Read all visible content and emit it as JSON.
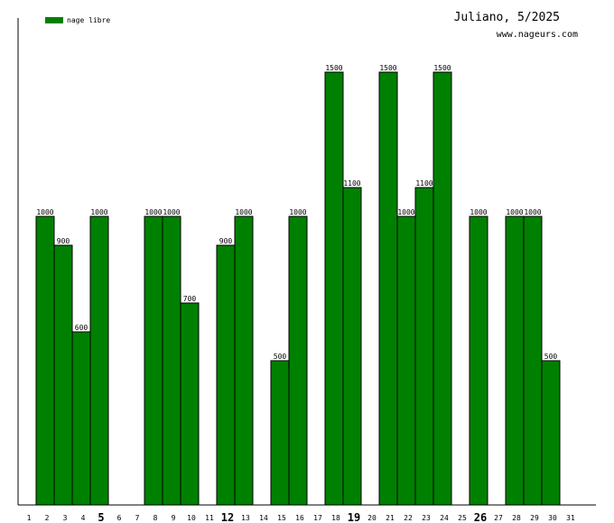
{
  "chart_data": {
    "type": "bar",
    "title": "Juliano, 5/2025",
    "subtitle": "www.nageurs.com",
    "xlabel": "",
    "ylabel": "",
    "ylim": [
      0,
      1500
    ],
    "grid": false,
    "legend": "top-left",
    "categories": [
      "1",
      "2",
      "3",
      "4",
      "5",
      "6",
      "7",
      "8",
      "9",
      "10",
      "11",
      "12",
      "13",
      "14",
      "15",
      "16",
      "17",
      "18",
      "19",
      "20",
      "21",
      "22",
      "23",
      "24",
      "25",
      "26",
      "27",
      "28",
      "29",
      "30",
      "31"
    ],
    "highlighted_categories": [
      "5",
      "12",
      "19",
      "26"
    ],
    "series": [
      {
        "name": "nage libre",
        "color": "#008000",
        "values": [
          0,
          1000,
          900,
          600,
          1000,
          0,
          0,
          1000,
          1000,
          700,
          0,
          900,
          1000,
          0,
          500,
          1000,
          0,
          1500,
          1100,
          0,
          1500,
          1000,
          1100,
          1500,
          0,
          1000,
          0,
          1000,
          1000,
          500,
          0
        ]
      }
    ]
  }
}
